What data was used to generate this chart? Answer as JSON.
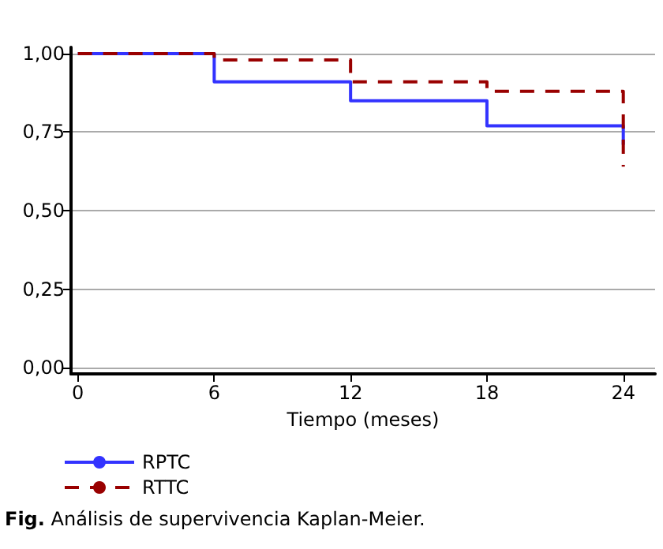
{
  "chart_data": {
    "type": "step",
    "xlabel": "Tiempo (meses)",
    "xlim": [
      -0.3,
      25.4
    ],
    "xticks": [
      0,
      6,
      12,
      18,
      24
    ],
    "ylim": [
      -0.02,
      1.02
    ],
    "yticks": [
      {
        "value": 0,
        "label": "0,00"
      },
      {
        "value": 0.25,
        "label": "0,25"
      },
      {
        "value": 0.5,
        "label": "0,50"
      },
      {
        "value": 0.75,
        "label": "0,75"
      },
      {
        "value": 1,
        "label": "1,00"
      }
    ],
    "grid": "y",
    "legend": "bottom left",
    "marker": "none",
    "series": [
      {
        "name": "RPTC",
        "color": "#3333ff",
        "line_style": "solid",
        "x": [
          0,
          6,
          12,
          18,
          24,
          24
        ],
        "values": [
          1,
          0.91,
          0.85,
          0.77,
          0.77,
          0.71
        ]
      },
      {
        "name": "RTTC",
        "color": "#990000",
        "line_style": "dashed",
        "x": [
          0,
          6,
          12,
          18,
          24,
          24
        ],
        "values": [
          1,
          0.98,
          0.91,
          0.88,
          0.88,
          0.64
        ]
      }
    ],
    "annotations": [
      "Fig. Análisis de supervivencia Kaplan-Meier."
    ]
  }
}
